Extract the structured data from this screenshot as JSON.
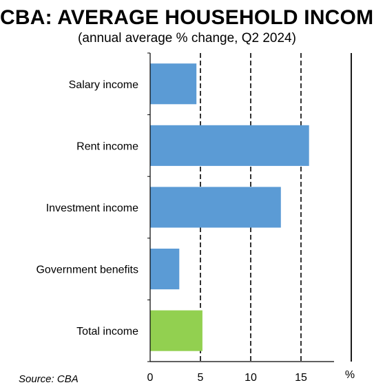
{
  "title": "CBA: AVERAGE HOUSEHOLD INCOME",
  "subtitle": "(annual average % change, Q2 2024)",
  "source": "Source: CBA",
  "chart_data": {
    "type": "bar",
    "orientation": "horizontal",
    "categories": [
      "Salary income",
      "Rent income",
      "Investment  income",
      "Government benefits",
      "Total income"
    ],
    "values": [
      4.6,
      15.8,
      13.0,
      2.9,
      5.2
    ],
    "colors": [
      "#5b9bd5",
      "#5b9bd5",
      "#5b9bd5",
      "#5b9bd5",
      "#92d050"
    ],
    "xlim": [
      0,
      20
    ],
    "xticks": [
      0,
      5,
      10,
      15
    ],
    "unit_label": "%",
    "grid": "dashed vertical at 5, 10, 15",
    "legend": "none"
  }
}
